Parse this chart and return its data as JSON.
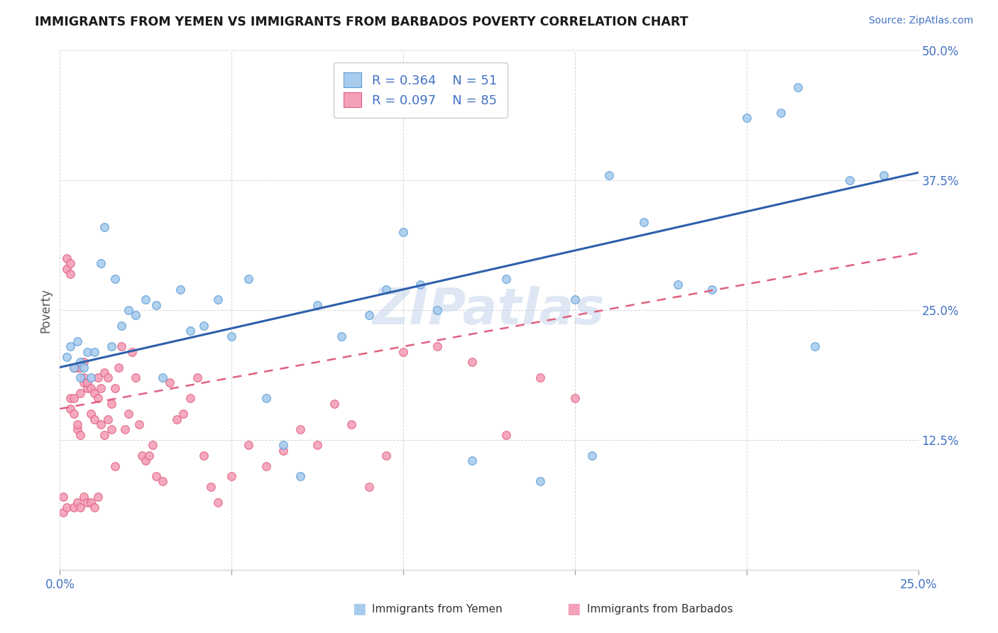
{
  "title": "IMMIGRANTS FROM YEMEN VS IMMIGRANTS FROM BARBADOS POVERTY CORRELATION CHART",
  "source": "Source: ZipAtlas.com",
  "ylabel": "Poverty",
  "xlim": [
    0.0,
    0.25
  ],
  "ylim": [
    0.0,
    0.5
  ],
  "xticks": [
    0.0,
    0.05,
    0.1,
    0.15,
    0.2,
    0.25
  ],
  "yticks": [
    0.0,
    0.125,
    0.25,
    0.375,
    0.5
  ],
  "color_yemen": "#A8CCEE",
  "color_barbados": "#F4A0B8",
  "color_edge_yemen": "#5B9BD5",
  "color_edge_barbados": "#E06080",
  "color_trend_yemen": "#2E5FAC",
  "color_trend_barbados": "#E06080",
  "yemen_x": [
    0.002,
    0.003,
    0.004,
    0.005,
    0.006,
    0.006,
    0.007,
    0.008,
    0.009,
    0.01,
    0.012,
    0.013,
    0.015,
    0.016,
    0.018,
    0.02,
    0.022,
    0.025,
    0.028,
    0.03,
    0.035,
    0.038,
    0.042,
    0.046,
    0.05,
    0.055,
    0.06,
    0.065,
    0.07,
    0.075,
    0.082,
    0.09,
    0.095,
    0.1,
    0.105,
    0.11,
    0.12,
    0.13,
    0.14,
    0.15,
    0.155,
    0.16,
    0.17,
    0.18,
    0.19,
    0.2,
    0.21,
    0.215,
    0.22,
    0.23,
    0.24
  ],
  "yemen_y": [
    0.205,
    0.215,
    0.195,
    0.22,
    0.2,
    0.185,
    0.195,
    0.21,
    0.185,
    0.21,
    0.295,
    0.33,
    0.215,
    0.28,
    0.235,
    0.25,
    0.245,
    0.26,
    0.255,
    0.185,
    0.27,
    0.23,
    0.235,
    0.26,
    0.225,
    0.28,
    0.165,
    0.12,
    0.09,
    0.255,
    0.225,
    0.245,
    0.27,
    0.325,
    0.275,
    0.25,
    0.105,
    0.28,
    0.085,
    0.26,
    0.11,
    0.38,
    0.335,
    0.275,
    0.27,
    0.435,
    0.44,
    0.465,
    0.215,
    0.375,
    0.38
  ],
  "barbados_x": [
    0.001,
    0.001,
    0.002,
    0.002,
    0.002,
    0.003,
    0.003,
    0.003,
    0.003,
    0.004,
    0.004,
    0.004,
    0.004,
    0.005,
    0.005,
    0.005,
    0.005,
    0.006,
    0.006,
    0.006,
    0.006,
    0.007,
    0.007,
    0.007,
    0.007,
    0.008,
    0.008,
    0.008,
    0.009,
    0.009,
    0.009,
    0.01,
    0.01,
    0.01,
    0.011,
    0.011,
    0.011,
    0.012,
    0.012,
    0.013,
    0.013,
    0.014,
    0.014,
    0.015,
    0.015,
    0.016,
    0.016,
    0.017,
    0.018,
    0.019,
    0.02,
    0.021,
    0.022,
    0.023,
    0.024,
    0.025,
    0.026,
    0.027,
    0.028,
    0.03,
    0.032,
    0.034,
    0.036,
    0.038,
    0.04,
    0.042,
    0.044,
    0.046,
    0.05,
    0.055,
    0.06,
    0.065,
    0.07,
    0.075,
    0.08,
    0.085,
    0.09,
    0.095,
    0.1,
    0.11,
    0.12,
    0.13,
    0.14,
    0.15
  ],
  "barbados_y": [
    0.07,
    0.055,
    0.29,
    0.3,
    0.06,
    0.155,
    0.165,
    0.285,
    0.295,
    0.15,
    0.165,
    0.195,
    0.06,
    0.135,
    0.14,
    0.195,
    0.065,
    0.13,
    0.17,
    0.195,
    0.06,
    0.185,
    0.18,
    0.2,
    0.07,
    0.175,
    0.18,
    0.065,
    0.175,
    0.15,
    0.065,
    0.17,
    0.145,
    0.06,
    0.165,
    0.185,
    0.07,
    0.175,
    0.14,
    0.19,
    0.13,
    0.185,
    0.145,
    0.16,
    0.135,
    0.175,
    0.1,
    0.195,
    0.215,
    0.135,
    0.15,
    0.21,
    0.185,
    0.14,
    0.11,
    0.105,
    0.11,
    0.12,
    0.09,
    0.085,
    0.18,
    0.145,
    0.15,
    0.165,
    0.185,
    0.11,
    0.08,
    0.065,
    0.09,
    0.12,
    0.1,
    0.115,
    0.135,
    0.12,
    0.16,
    0.14,
    0.08,
    0.11,
    0.21,
    0.215,
    0.2,
    0.13,
    0.185,
    0.165
  ],
  "trend_yemen_intercept": 0.195,
  "trend_yemen_slope": 0.75,
  "trend_barbados_intercept": 0.155,
  "trend_barbados_slope": 0.6
}
